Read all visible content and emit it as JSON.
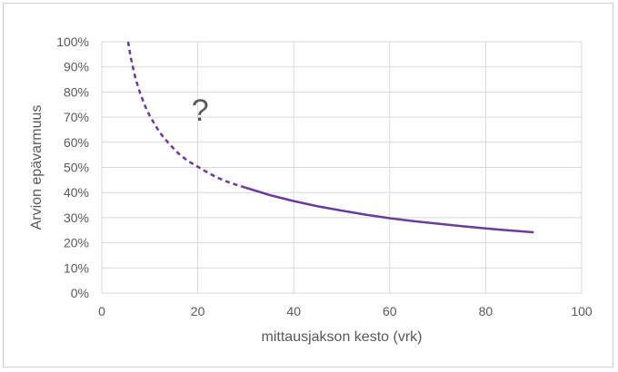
{
  "chart_data": {
    "type": "line",
    "xlabel": "mittausjakson kesto (vrk)",
    "ylabel": "Arvion epävarmuus",
    "xlim": [
      0,
      100
    ],
    "ylim": [
      0,
      100
    ],
    "x_ticks": [
      "0",
      "20",
      "40",
      "60",
      "80",
      "100"
    ],
    "y_ticks": [
      "0%",
      "10%",
      "20%",
      "30%",
      "40%",
      "50%",
      "60%",
      "70%",
      "80%",
      "90%",
      "100%"
    ],
    "grid": true,
    "legend": "none",
    "series": [
      {
        "style": "dashed",
        "color": "#6a3d9a",
        "x": [
          5.5,
          6,
          7,
          8,
          9,
          10,
          12,
          14,
          16,
          18,
          20,
          22,
          24,
          26,
          28,
          29.5
        ],
        "y": [
          100,
          94,
          85.5,
          79.5,
          74.5,
          70.5,
          64,
          59.5,
          55.5,
          52.5,
          50.3,
          48,
          46,
          44.4,
          43.1,
          42.2
        ]
      },
      {
        "style": "solid",
        "color": "#6a3d9a",
        "x": [
          29.5,
          35,
          40,
          45,
          50,
          55,
          60,
          65,
          70,
          75,
          80,
          85,
          90
        ],
        "y": [
          42.2,
          39,
          36.6,
          34.5,
          32.8,
          31.2,
          29.8,
          28.6,
          27.6,
          26.6,
          25.7,
          24.9,
          24.2
        ]
      }
    ],
    "annotations": [
      {
        "text": "?",
        "x": 20.5,
        "y": 73
      }
    ]
  }
}
